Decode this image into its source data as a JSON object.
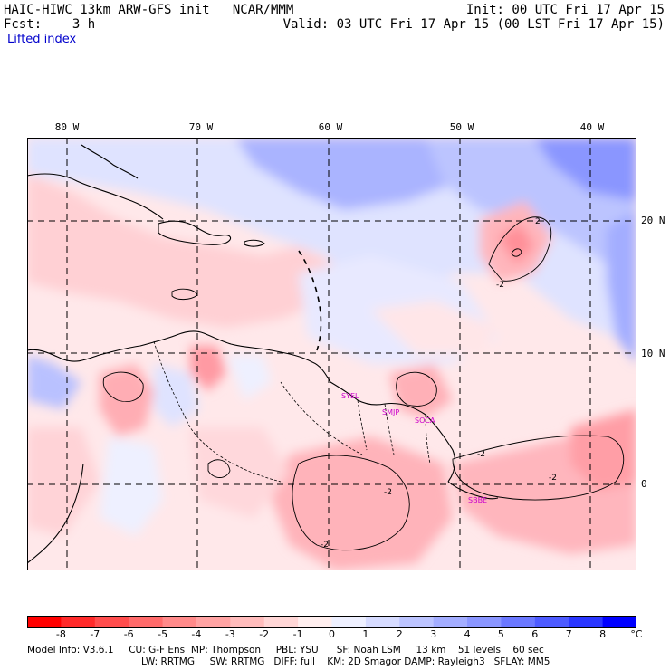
{
  "header": {
    "left_line1": "HAIC-HIWC 13km ARW-GFS init   NCAR/MMM",
    "left_line2": "Fcst:    3 h",
    "right_line1": "Init: 00 UTC Fri 17 Apr 15",
    "right_line2": "Valid: 03 UTC Fri 17 Apr 15 (00 LST Fri 17 Apr 15)",
    "field_name": "Lifted index"
  },
  "map": {
    "longitude_labels": [
      "80 W",
      "70 W",
      "60 W",
      "50 W",
      "40 W"
    ],
    "latitude_labels": [
      "20 N",
      "10 N",
      "0"
    ],
    "contour_labels": [
      "2",
      "-2",
      "-2",
      "-2",
      "-2",
      "-2"
    ],
    "stations": [
      "SYEL",
      "SMJP",
      "SOCA",
      "SBBE"
    ]
  },
  "colorbar": {
    "ticks": [
      "-8",
      "-7",
      "-6",
      "-5",
      "-4",
      "-3",
      "-2",
      "-1",
      "0",
      "1",
      "2",
      "3",
      "4",
      "5",
      "6",
      "7",
      "8"
    ],
    "unit": "°C",
    "colors": [
      "#ff0000",
      "#ff2a2a",
      "#ff4d4d",
      "#ff6b6b",
      "#ff8a8a",
      "#ffa3a3",
      "#ffbcbc",
      "#ffd6d6",
      "#ffeeee",
      "#eef0ff",
      "#d6dbff",
      "#bcc4ff",
      "#a3adff",
      "#8a96ff",
      "#6b78ff",
      "#4d5bff",
      "#2a36ff",
      "#0000ff"
    ]
  },
  "footer": {
    "line1": "Model Info: V3.6.1     CU: G-F Ens  MP: Thompson     PBL: YSU      SF: Noah LSM     13 km    51 levels    60 sec",
    "line2": "LW: RRTMG     SW: RRTMG   DIFF: full    KM: 2D Smagor DAMP: Rayleigh3   SFLAY: MM5"
  }
}
